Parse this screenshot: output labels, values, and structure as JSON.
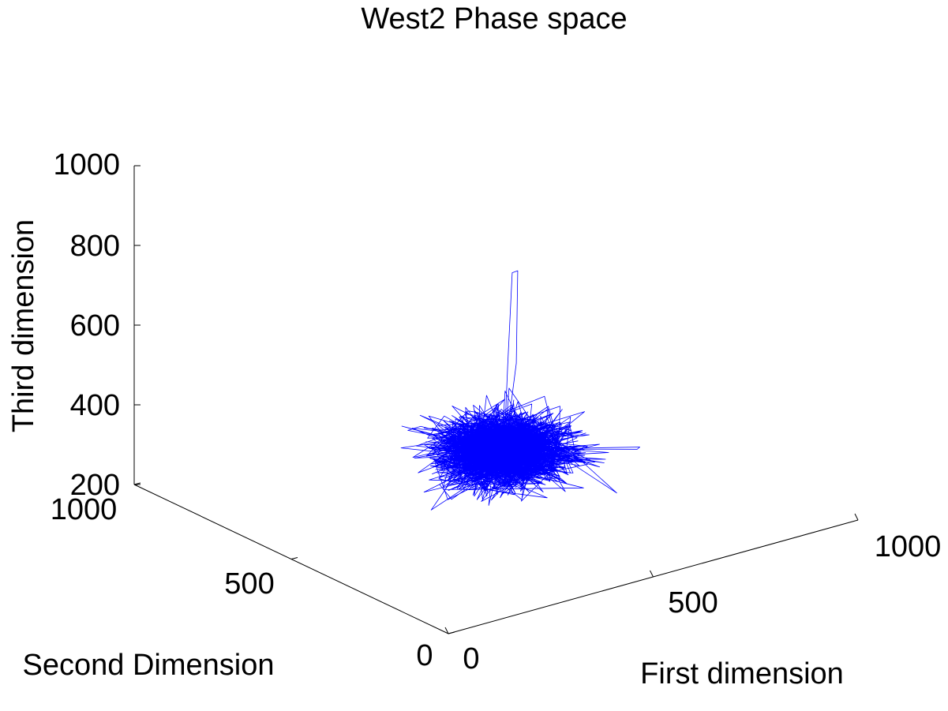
{
  "chart_data": {
    "type": "line",
    "projection": "3d",
    "title": "West2 Phase space",
    "xlabel": "First dimension",
    "ylabel": "Second Dimension",
    "zlabel": "Third dimension",
    "xlim": [
      0,
      1000
    ],
    "ylim": [
      0,
      1000
    ],
    "zlim": [
      200,
      1000
    ],
    "x_ticks": [
      "0",
      "500",
      "1000"
    ],
    "y_ticks": [
      "0",
      "500",
      "1000"
    ],
    "z_ticks": [
      "200",
      "400",
      "600",
      "800",
      "1000"
    ],
    "grid": false,
    "line_color": "#0000ff",
    "series": [
      {
        "values_description_note": "",
        "cluster_center": [
          420,
          370,
          405
        ],
        "cluster_spread": [
          70,
          60,
          40
        ],
        "cluster_points": 1600,
        "outliers": [
          [
            420,
            370,
            405
          ],
          [
            440,
            385,
            600
          ],
          [
            455,
            390,
            830
          ],
          [
            470,
            392,
            830
          ],
          [
            465,
            390,
            600
          ],
          [
            425,
            372,
            410
          ],
          [
            420,
            370,
            405
          ],
          [
            760,
            390,
            300
          ],
          [
            765,
            388,
            305
          ],
          [
            430,
            372,
            400
          ],
          [
            420,
            370,
            405
          ],
          [
            300,
            520,
            430
          ],
          [
            320,
            505,
            440
          ],
          [
            410,
            380,
            410
          ]
        ]
      }
    ]
  }
}
